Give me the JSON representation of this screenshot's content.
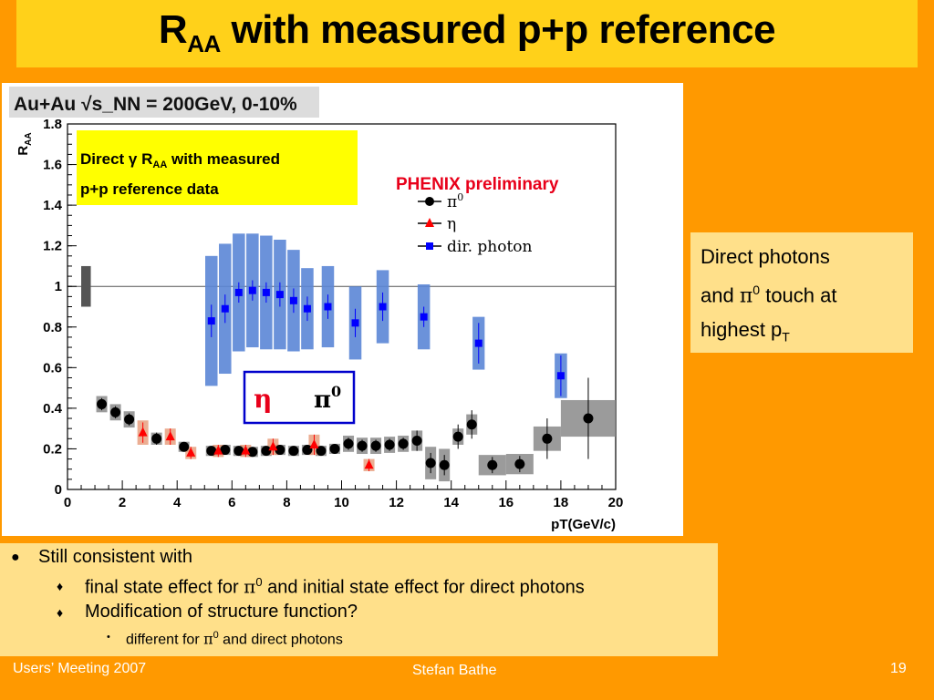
{
  "slide": {
    "title_main": "R",
    "title_sub": "AA",
    "title_rest": " with measured p+p reference"
  },
  "chart_data": {
    "type": "scatter",
    "header_text": "Au+Au √s_NN = 200GeV, 0-10%",
    "experiment_label": "PHENIX preliminary",
    "annotation": "Direct γ R_AA with measured p+p reference data",
    "xlabel": "pT(GeV/c)",
    "ylabel": "R_AA",
    "xlim": [
      0,
      20
    ],
    "ylim": [
      0,
      1.8
    ],
    "x_ticks": [
      0,
      2,
      4,
      6,
      8,
      10,
      12,
      14,
      16,
      18,
      20
    ],
    "y_ticks": [
      0,
      0.2,
      0.4,
      0.6,
      0.8,
      1,
      1.2,
      1.4,
      1.6,
      1.8
    ],
    "reference_line": 1,
    "inset_labels": [
      "η",
      "π0"
    ],
    "series": [
      {
        "name": "π0",
        "marker": "circle",
        "color": "#000000",
        "points": [
          {
            "x": 1.25,
            "y": 0.42,
            "err": 0.03,
            "sys": 0.04
          },
          {
            "x": 1.75,
            "y": 0.38,
            "err": 0.03,
            "sys": 0.04
          },
          {
            "x": 2.25,
            "y": 0.345,
            "err": 0.03,
            "sys": 0.04
          },
          {
            "x": 3.25,
            "y": 0.25,
            "err": 0.03,
            "sys": 0.03
          },
          {
            "x": 4.25,
            "y": 0.21,
            "err": 0.02,
            "sys": 0.025
          },
          {
            "x": 5.25,
            "y": 0.19,
            "err": 0.02,
            "sys": 0.025
          },
          {
            "x": 5.75,
            "y": 0.195,
            "err": 0.02,
            "sys": 0.025
          },
          {
            "x": 6.25,
            "y": 0.19,
            "err": 0.02,
            "sys": 0.025
          },
          {
            "x": 6.75,
            "y": 0.185,
            "err": 0.02,
            "sys": 0.025
          },
          {
            "x": 7.25,
            "y": 0.19,
            "err": 0.02,
            "sys": 0.025
          },
          {
            "x": 7.75,
            "y": 0.195,
            "err": 0.02,
            "sys": 0.025
          },
          {
            "x": 8.25,
            "y": 0.19,
            "err": 0.02,
            "sys": 0.025
          },
          {
            "x": 8.75,
            "y": 0.195,
            "err": 0.02,
            "sys": 0.025
          },
          {
            "x": 9.25,
            "y": 0.19,
            "err": 0.02,
            "sys": 0.025
          },
          {
            "x": 9.75,
            "y": 0.2,
            "err": 0.02,
            "sys": 0.025
          },
          {
            "x": 10.25,
            "y": 0.225,
            "err": 0.03,
            "sys": 0.04
          },
          {
            "x": 10.75,
            "y": 0.215,
            "err": 0.03,
            "sys": 0.04
          },
          {
            "x": 11.25,
            "y": 0.215,
            "err": 0.03,
            "sys": 0.04
          },
          {
            "x": 11.75,
            "y": 0.22,
            "err": 0.03,
            "sys": 0.04
          },
          {
            "x": 12.25,
            "y": 0.225,
            "err": 0.03,
            "sys": 0.04
          },
          {
            "x": 12.75,
            "y": 0.24,
            "err": 0.05,
            "sys": 0.05
          },
          {
            "x": 13.25,
            "y": 0.13,
            "err": 0.05,
            "sys": 0.08
          },
          {
            "x": 13.75,
            "y": 0.12,
            "err": 0.05,
            "sys": 0.08
          },
          {
            "x": 14.25,
            "y": 0.26,
            "err": 0.06,
            "sys": 0.04
          },
          {
            "x": 14.75,
            "y": 0.32,
            "err": 0.07,
            "sys": 0.05
          },
          {
            "x": 15.5,
            "y": 0.12,
            "err": 0.04,
            "sys": 0.05
          },
          {
            "x": 16.5,
            "y": 0.125,
            "err": 0.04,
            "sys": 0.05
          },
          {
            "x": 17.5,
            "y": 0.25,
            "err": 0.1,
            "sys": 0.06
          },
          {
            "x": 19,
            "y": 0.35,
            "err": 0.2,
            "sys": 0.09
          }
        ]
      },
      {
        "name": "η",
        "marker": "triangle",
        "color": "#FF0000",
        "points": [
          {
            "x": 2.75,
            "y": 0.28,
            "err": 0.05,
            "sys": 0.06
          },
          {
            "x": 3.75,
            "y": 0.26,
            "err": 0.04,
            "sys": 0.04
          },
          {
            "x": 4.5,
            "y": 0.18,
            "err": 0.03,
            "sys": 0.03
          },
          {
            "x": 5.5,
            "y": 0.19,
            "err": 0.03,
            "sys": 0.03
          },
          {
            "x": 6.5,
            "y": 0.19,
            "err": 0.03,
            "sys": 0.03
          },
          {
            "x": 7.5,
            "y": 0.21,
            "err": 0.04,
            "sys": 0.04
          },
          {
            "x": 9,
            "y": 0.22,
            "err": 0.05,
            "sys": 0.05
          },
          {
            "x": 11,
            "y": 0.12,
            "err": 0.03,
            "sys": 0.03
          }
        ]
      },
      {
        "name": "dir. photon",
        "marker": "square",
        "color": "#0000FF",
        "points": [
          {
            "x": 5.25,
            "y": 0.83,
            "err": 0.08,
            "sys": 0.32
          },
          {
            "x": 5.75,
            "y": 0.89,
            "err": 0.07,
            "sys": 0.32
          },
          {
            "x": 6.25,
            "y": 0.97,
            "err": 0.05,
            "sys": 0.29
          },
          {
            "x": 6.75,
            "y": 0.98,
            "err": 0.05,
            "sys": 0.28
          },
          {
            "x": 7.25,
            "y": 0.97,
            "err": 0.05,
            "sys": 0.28
          },
          {
            "x": 7.75,
            "y": 0.96,
            "err": 0.06,
            "sys": 0.27
          },
          {
            "x": 8.25,
            "y": 0.93,
            "err": 0.06,
            "sys": 0.25
          },
          {
            "x": 8.75,
            "y": 0.89,
            "err": 0.06,
            "sys": 0.2
          },
          {
            "x": 9.5,
            "y": 0.9,
            "err": 0.06,
            "sys": 0.2
          },
          {
            "x": 10.5,
            "y": 0.82,
            "err": 0.07,
            "sys": 0.18
          },
          {
            "x": 11.5,
            "y": 0.9,
            "err": 0.07,
            "sys": 0.18
          },
          {
            "x": 13,
            "y": 0.85,
            "err": 0.05,
            "sys": 0.16
          },
          {
            "x": 15,
            "y": 0.72,
            "err": 0.1,
            "sys": 0.13
          },
          {
            "x": 18,
            "y": 0.56,
            "err": 0.1,
            "sys": 0.11
          }
        ]
      }
    ]
  },
  "side_note": {
    "line1": "Direct photons",
    "line2_pre": "and ",
    "line2_pi": "π",
    "line2_sup": "0",
    "line2_post": " touch at",
    "line3_pre": "highest p",
    "line3_sub": "T"
  },
  "bullets": {
    "l1": "Still consistent with",
    "l2_pre": "final state effect for ",
    "l2_pi": "π",
    "l2_sup": "0",
    "l2_post": " and initial state effect for direct photons",
    "l3": "Modification of structure function?",
    "l4_pre": "different for ",
    "l4_pi": "π",
    "l4_sup": "0",
    "l4_post": " and direct photons"
  },
  "footer": {
    "left": "Users’ Meeting 2007",
    "center": "Stefan Bathe",
    "page": "19"
  }
}
